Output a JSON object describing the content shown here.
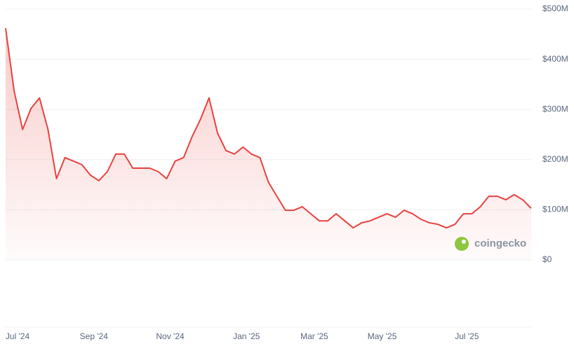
{
  "chart_data": {
    "type": "line",
    "categories": [
      null,
      "Jul '24",
      null,
      null,
      null,
      null,
      null,
      null,
      null,
      null,
      "Sep '24",
      null,
      null,
      null,
      null,
      null,
      null,
      null,
      null,
      "Nov '24",
      null,
      null,
      null,
      null,
      null,
      null,
      null,
      null,
      "Jan '25",
      null,
      null,
      null,
      null,
      null,
      null,
      null,
      "Mar '25",
      null,
      null,
      null,
      null,
      null,
      null,
      null,
      "May '25",
      null,
      null,
      null,
      null,
      null,
      null,
      null,
      null,
      null,
      "Jul '25",
      null,
      null,
      null,
      null,
      null,
      null,
      null,
      null
    ],
    "values": [
      462,
      337,
      260,
      302,
      323,
      260,
      162,
      204,
      197,
      190,
      169,
      158,
      176,
      211,
      211,
      183,
      183,
      183,
      176,
      162,
      197,
      204,
      246,
      281,
      323,
      253,
      218,
      211,
      225,
      211,
      204,
      155,
      127,
      99,
      99,
      106,
      92,
      78,
      78,
      92,
      78,
      64,
      74,
      78,
      85,
      92,
      85,
      99,
      92,
      81,
      74,
      71,
      64,
      71,
      92,
      92,
      106,
      127,
      127,
      120,
      130,
      120,
      103
    ],
    "color": "#e8423f",
    "ylim": [
      0,
      500
    ],
    "yticks": [
      {
        "value": 0,
        "label": "$0"
      },
      {
        "value": 100,
        "label": "$100M"
      },
      {
        "value": 200,
        "label": "$200M"
      },
      {
        "value": 300,
        "label": "$300M"
      },
      {
        "value": 400,
        "label": "$400M"
      },
      {
        "value": 500,
        "label": "$500M"
      }
    ],
    "grid": true,
    "watermark": "coingecko"
  }
}
